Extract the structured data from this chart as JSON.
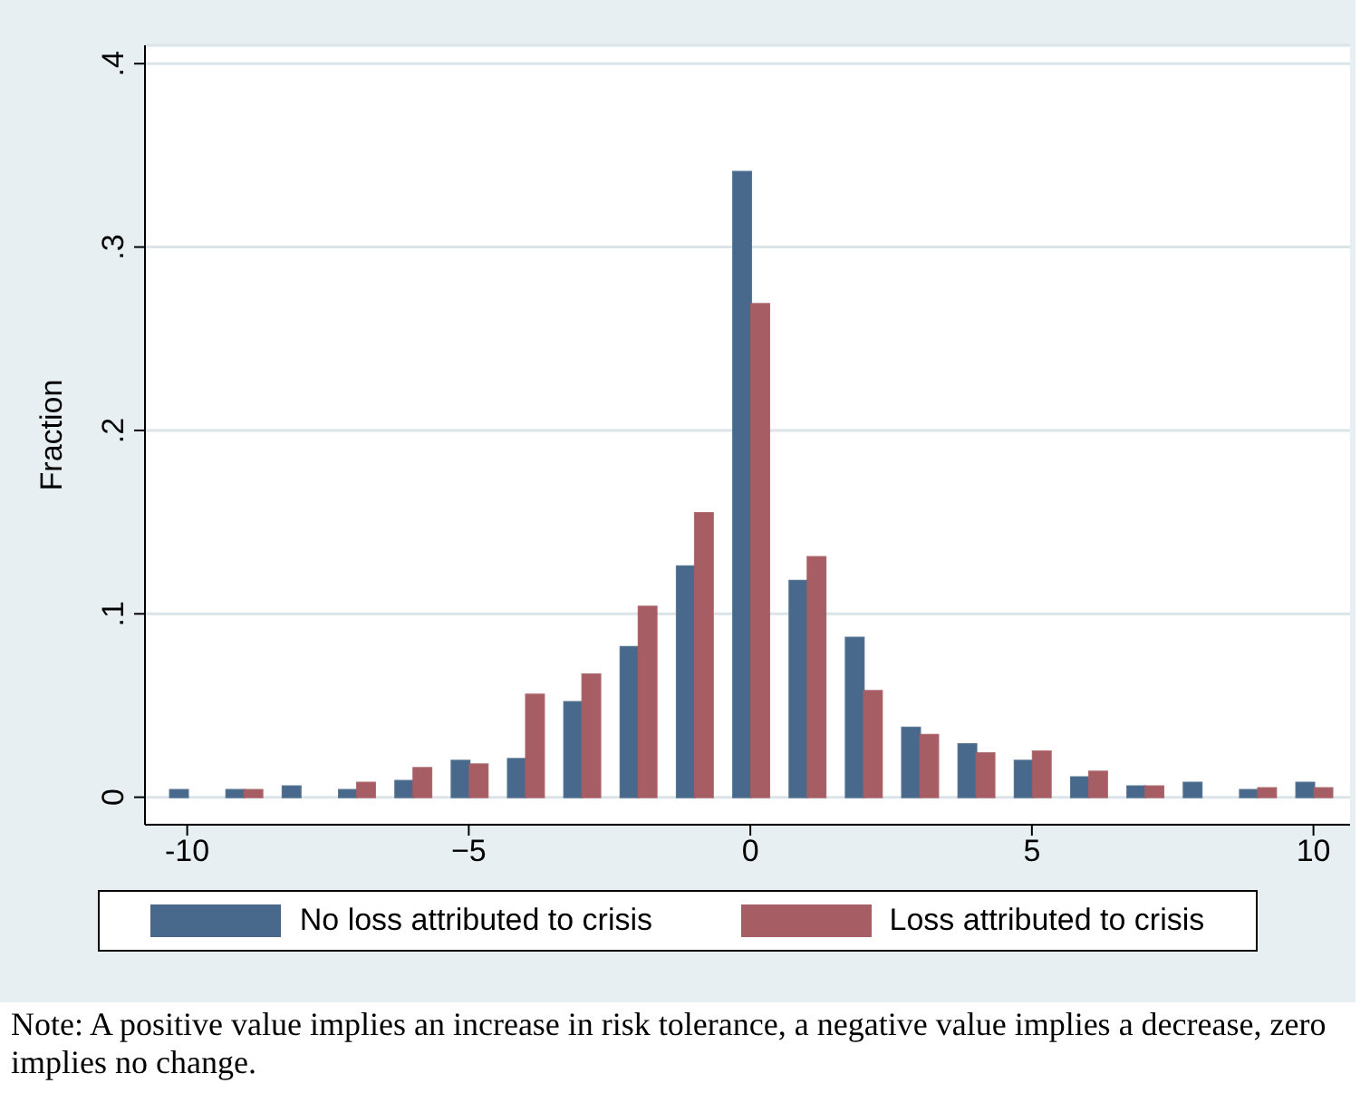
{
  "chart_data": {
    "type": "bar",
    "ylabel": "Fraction",
    "x": [
      -10,
      -9,
      -8,
      -7,
      -6,
      -5,
      -4,
      -3,
      -2,
      -1,
      0,
      1,
      2,
      3,
      4,
      5,
      6,
      7,
      8,
      9,
      10
    ],
    "series": [
      {
        "name": "No loss attributed to crisis",
        "color": "#48698b",
        "values": [
          0.004,
          0.004,
          0.006,
          0.004,
          0.009,
          0.02,
          0.021,
          0.052,
          0.082,
          0.126,
          0.341,
          0.118,
          0.087,
          0.038,
          0.029,
          0.02,
          0.011,
          0.006,
          0.008,
          0.004,
          0.008
        ]
      },
      {
        "name": "Loss attributed to crisis",
        "color": "#a65d63",
        "values": [
          null,
          0.004,
          null,
          0.008,
          0.016,
          0.018,
          0.056,
          0.067,
          0.104,
          0.155,
          0.269,
          0.131,
          0.058,
          0.034,
          0.024,
          0.025,
          0.014,
          0.006,
          null,
          0.005,
          0.005
        ]
      }
    ],
    "xlim": [
      -10.75,
      10.65
    ],
    "xticks": [
      -10,
      {
        "value": -5,
        "label": "−5"
      },
      0,
      5,
      10
    ],
    "ylim": [
      -0.015,
      0.41
    ],
    "yticks": [
      0,
      {
        "value": 0.1,
        "label": ".1"
      },
      {
        "value": 0.2,
        "label": ".2"
      },
      {
        "value": 0.3,
        "label": ".3"
      },
      {
        "value": 0.4,
        "label": ".4"
      }
    ],
    "grid": "y",
    "legend": "bottom",
    "annotations": [
      "Note: A positive value implies an increase in risk tolerance, a negative value implies a decrease, zero implies no change."
    ]
  }
}
